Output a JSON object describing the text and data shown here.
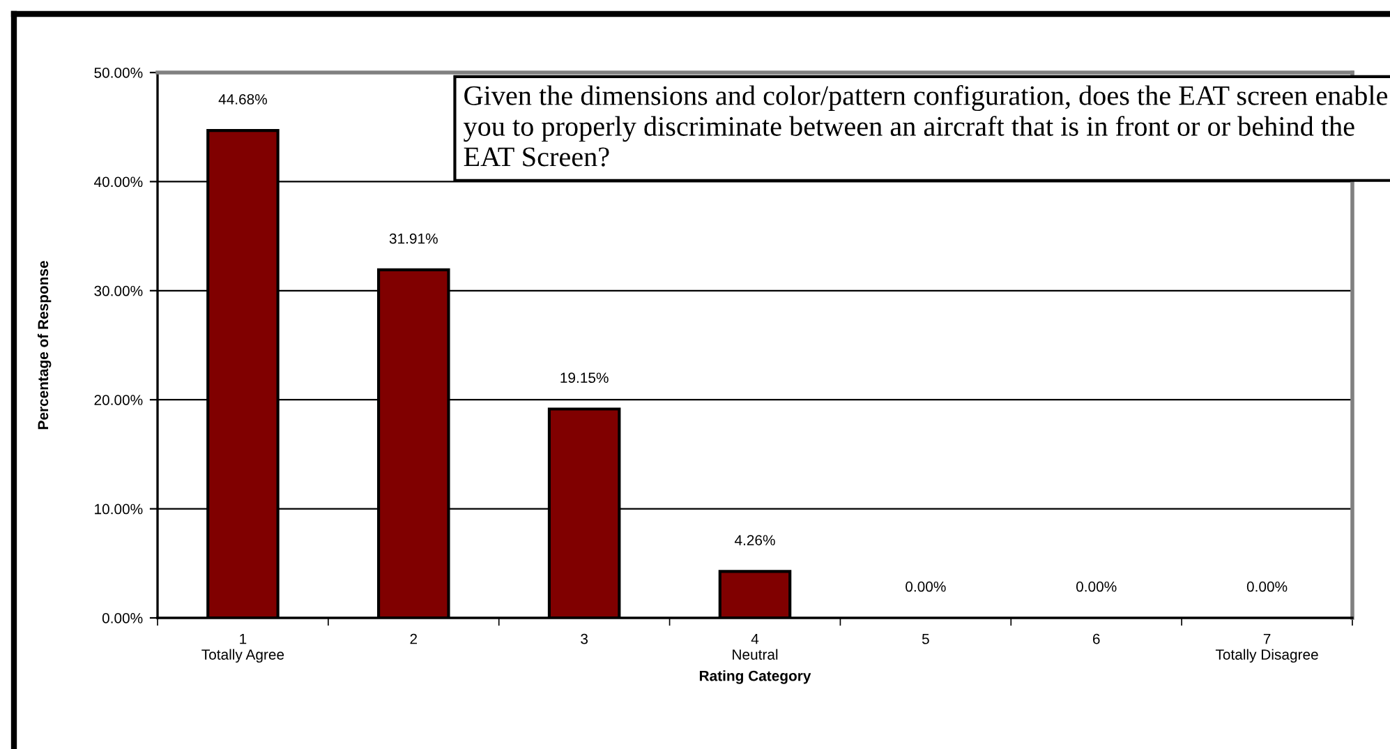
{
  "chart_data": {
    "type": "bar",
    "xlabel": "Rating Category",
    "ylabel": "Percentage of Response",
    "categories": [
      "1\nTotally Agree",
      "2",
      "3",
      "4\nNeutral",
      "5",
      "6",
      "7\nTotally Disagree"
    ],
    "values": [
      44.68,
      31.91,
      19.15,
      4.26,
      0,
      0,
      0
    ],
    "value_labels": [
      "44.68%",
      "31.91%",
      "19.15%",
      "4.26%",
      "0.00%",
      "0.00%",
      "0.00%"
    ],
    "color": "#800000",
    "ylim": [
      0,
      50
    ],
    "yticks": [
      {
        "value": 0,
        "label": "0.00%"
      },
      {
        "value": 10,
        "label": "10.00%"
      },
      {
        "value": 20,
        "label": "20.00%"
      },
      {
        "value": 30,
        "label": "30.00%"
      },
      {
        "value": 40,
        "label": "40.00%"
      },
      {
        "value": 50,
        "label": "50.00%"
      }
    ],
    "grid": "y",
    "legend": false,
    "annotations": [
      "Given the dimensions and color/pattern configuration, does the EAT screen enable you to properly discriminate between an aircraft that is in front or or behind the EAT Screen?"
    ]
  }
}
